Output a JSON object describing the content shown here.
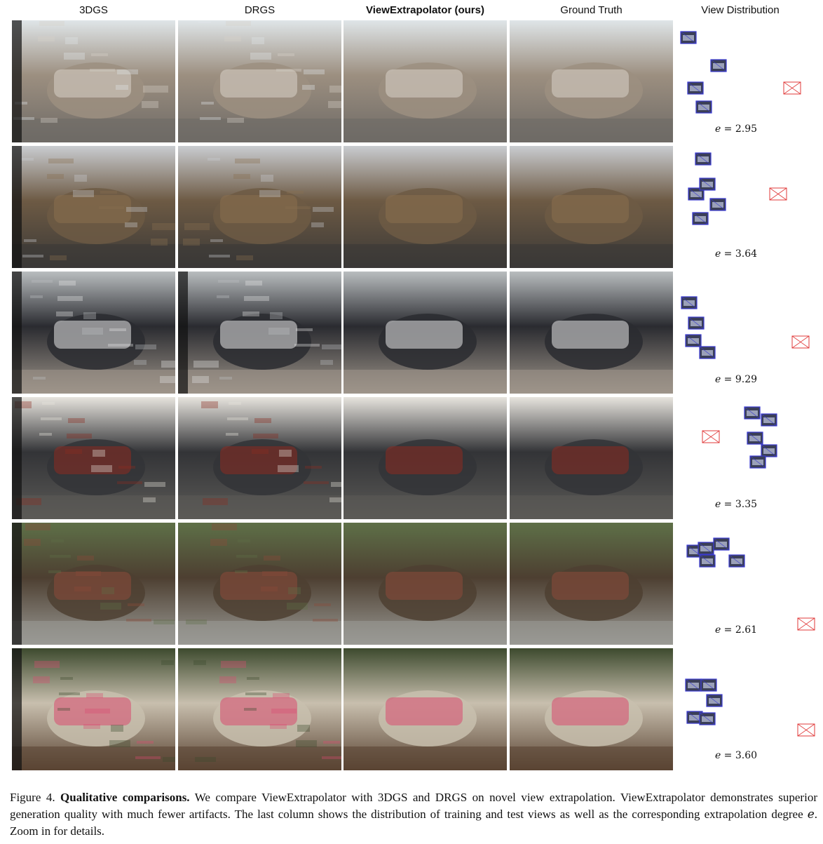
{
  "headers": [
    "3DGS",
    "DRGS",
    "ViewExtrapolator (ours)",
    "Ground Truth",
    "View Distribution"
  ],
  "rows": [
    {
      "scene": "living-room",
      "e_symbol": "e",
      "e_value": "= 2.95",
      "palette": {
        "sky": "#dfe5e8",
        "mid": "#9c8f80",
        "floor": "#6e6a66",
        "accent": "#d8d2c8"
      }
    },
    {
      "scene": "triceratops",
      "e_symbol": "e",
      "e_value": "= 3.64",
      "palette": {
        "sky": "#c9ccd0",
        "mid": "#6d5a44",
        "floor": "#3b3937",
        "accent": "#8a6f4f"
      }
    },
    {
      "scene": "motorcycle",
      "e_symbol": "e",
      "e_value": "= 9.29",
      "palette": {
        "sky": "#b9bdbf",
        "mid": "#2a2b30",
        "floor": "#9e958a",
        "accent": "#e6e6e6"
      }
    },
    {
      "scene": "kitchen-stove",
      "e_symbol": "e",
      "e_value": "= 3.35",
      "palette": {
        "sky": "#e7e4de",
        "mid": "#333437",
        "floor": "#5b5a57",
        "accent": "#8c2a20"
      }
    },
    {
      "scene": "garden-table",
      "e_symbol": "e",
      "e_value": "= 2.61",
      "palette": {
        "sky": "#5e7048",
        "mid": "#4d3f31",
        "floor": "#9a9a95",
        "accent": "#8c4a3a"
      }
    },
    {
      "scene": "bench",
      "e_symbol": "e",
      "e_value": "= 3.60",
      "palette": {
        "sky": "#3d4a2e",
        "mid": "#c8bfae",
        "floor": "#5a4433",
        "accent": "#d94a70"
      }
    }
  ],
  "caption": {
    "prefix": "Figure 4. ",
    "bold": "Qualitative comparisons.",
    "text": " We compare ViewExtrapolator with 3DGS and DRGS on novel view extrapolation. ViewExtrapolator demonstrates superior generation quality with much fewer artifacts. The last column shows the distribution of training and test views as well as the corresponding extrapolation degree ",
    "symbol": "e",
    "suffix": ". Zoom in for details."
  },
  "colors": {
    "train_camera": "#3a3ad0",
    "test_camera": "#e03a3a"
  }
}
